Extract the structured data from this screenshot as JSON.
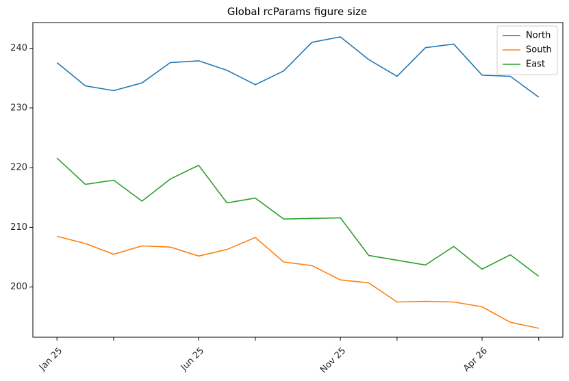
{
  "chart_data": {
    "type": "line",
    "title": "Global rcParams figure size",
    "xlabel": "",
    "ylabel": "",
    "x": [
      "2025-01",
      "2025-02",
      "2025-03",
      "2025-04",
      "2025-05",
      "2025-06",
      "2025-07",
      "2025-08",
      "2025-09",
      "2025-10",
      "2025-11",
      "2025-12",
      "2026-01",
      "2026-02",
      "2026-03",
      "2026-04",
      "2026-05",
      "2026-06"
    ],
    "x_ticks": [
      {
        "x": "2025-01",
        "label": "Jan 25"
      },
      {
        "x": "2025-03",
        "label": ""
      },
      {
        "x": "2025-06",
        "label": "Jun 25"
      },
      {
        "x": "2025-08",
        "label": ""
      },
      {
        "x": "2025-11",
        "label": "Nov 25"
      },
      {
        "x": "2026-01",
        "label": ""
      },
      {
        "x": "2026-04",
        "label": "Apr 26"
      },
      {
        "x": "2026-06",
        "label": ""
      }
    ],
    "y_ticks": [
      200,
      210,
      220,
      230,
      240
    ],
    "ylim": [
      191.6,
      244.3
    ],
    "grid": false,
    "legend_position": "top-right",
    "series": [
      {
        "name": "North",
        "color": "#1f77b4",
        "values": [
          237.6,
          233.7,
          232.9,
          234.2,
          237.6,
          237.9,
          236.3,
          233.9,
          236.2,
          241.0,
          241.9,
          238.1,
          235.3,
          240.1,
          240.7,
          235.5,
          235.3,
          231.8
        ]
      },
      {
        "name": "South",
        "color": "#ff7f0e",
        "values": [
          208.5,
          207.3,
          205.5,
          206.9,
          206.7,
          205.2,
          206.3,
          208.3,
          204.2,
          203.6,
          201.2,
          200.7,
          197.5,
          197.6,
          197.5,
          196.7,
          194.1,
          193.1
        ]
      },
      {
        "name": "East",
        "color": "#2ca02c",
        "values": [
          221.6,
          217.2,
          217.9,
          214.4,
          218.1,
          220.4,
          214.1,
          214.9,
          211.4,
          211.5,
          211.6,
          205.3,
          204.5,
          203.7,
          206.8,
          203.0,
          205.4,
          201.8
        ]
      }
    ]
  }
}
